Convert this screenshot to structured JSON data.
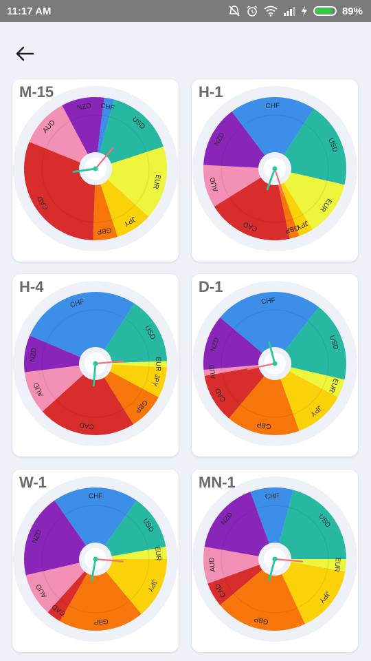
{
  "status_bar": {
    "time": "11:17 AM",
    "battery_level": "89%",
    "battery_fraction": 0.89,
    "icons": [
      "mute-alarm-icon",
      "alarm-clock-icon",
      "wifi-icon",
      "signal-icon",
      "charging-icon",
      "battery-icon"
    ]
  },
  "header": {
    "back_icon": "arrow-left-icon"
  },
  "colors": {
    "CHF": "#3d8ee8",
    "USD": "#27b8a2",
    "EUR": "#edf53c",
    "JPY": "#fbd20a",
    "GBP": "#f6760b",
    "CAD": "#d72d2d",
    "AUD": "#f390b6",
    "NZD": "#8a25ba",
    "hand_red": "#f2707a",
    "hand_green": "#25c99c",
    "ring": "#eef2f8"
  },
  "charts": [
    {
      "title": "M-15",
      "segments": [
        {
          "label": "NZD",
          "deg": 35
        },
        {
          "label": "CHF",
          "deg": 8
        },
        {
          "label": "USD",
          "deg": 57
        },
        {
          "label": "EUR",
          "deg": 60
        },
        {
          "label": "JPY",
          "deg": 30
        },
        {
          "label": "GBP",
          "deg": 20
        },
        {
          "label": "CAD",
          "deg": 110
        },
        {
          "label": "AUD",
          "deg": 40
        }
      ],
      "start_deg": -28,
      "hand_red_deg": 40,
      "hand_green_deg": 262
    },
    {
      "title": "H-1",
      "segments": [
        {
          "label": "CHF",
          "deg": 70
        },
        {
          "label": "USD",
          "deg": 70
        },
        {
          "label": "EUR",
          "deg": 45
        },
        {
          "label": "JPY",
          "deg": 12
        },
        {
          "label": "GBP",
          "deg": 8
        },
        {
          "label": "CAD",
          "deg": 70
        },
        {
          "label": "AUD",
          "deg": 35
        },
        {
          "label": "NZD",
          "deg": 50
        }
      ],
      "start_deg": -37,
      "hand_red_deg": 162,
      "hand_green_deg": 200
    },
    {
      "title": "H-4",
      "segments": [
        {
          "label": "CHF",
          "deg": 100
        },
        {
          "label": "USD",
          "deg": 55
        },
        {
          "label": "EUR",
          "deg": 5
        },
        {
          "label": "JPY",
          "deg": 25
        },
        {
          "label": "GBP",
          "deg": 30
        },
        {
          "label": "CAD",
          "deg": 80
        },
        {
          "label": "AUD",
          "deg": 35
        },
        {
          "label": "NZD",
          "deg": 30
        }
      ],
      "start_deg": -67,
      "hand_red_deg": 85,
      "hand_green_deg": 185
    },
    {
      "title": "D-1",
      "segments": [
        {
          "label": "CHF",
          "deg": 88
        },
        {
          "label": "USD",
          "deg": 65
        },
        {
          "label": "EUR",
          "deg": 15
        },
        {
          "label": "JPY",
          "deg": 42
        },
        {
          "label": "GBP",
          "deg": 60
        },
        {
          "label": "CAD",
          "deg": 40
        },
        {
          "label": "AUD",
          "deg": 5
        },
        {
          "label": "NZD",
          "deg": 45
        }
      ],
      "start_deg": -50,
      "hand_red_deg": 258,
      "hand_green_deg": 345
    },
    {
      "title": "W-1",
      "segments": [
        {
          "label": "CHF",
          "deg": 70
        },
        {
          "label": "USD",
          "deg": 45
        },
        {
          "label": "EUR",
          "deg": 10
        },
        {
          "label": "JPY",
          "deg": 50
        },
        {
          "label": "GBP",
          "deg": 70
        },
        {
          "label": "CAD",
          "deg": 12
        },
        {
          "label": "AUD",
          "deg": 35
        },
        {
          "label": "NZD",
          "deg": 68
        }
      ],
      "start_deg": -35,
      "hand_red_deg": 95,
      "hand_green_deg": 190
    },
    {
      "title": "MN-1",
      "segments": [
        {
          "label": "CHF",
          "deg": 35
        },
        {
          "label": "USD",
          "deg": 75
        },
        {
          "label": "EUR",
          "deg": 10
        },
        {
          "label": "JPY",
          "deg": 55
        },
        {
          "label": "GBP",
          "deg": 75
        },
        {
          "label": "CAD",
          "deg": 20
        },
        {
          "label": "AUD",
          "deg": 30
        },
        {
          "label": "NZD",
          "deg": 60
        }
      ],
      "start_deg": -20,
      "hand_red_deg": 95,
      "hand_green_deg": 195
    }
  ]
}
